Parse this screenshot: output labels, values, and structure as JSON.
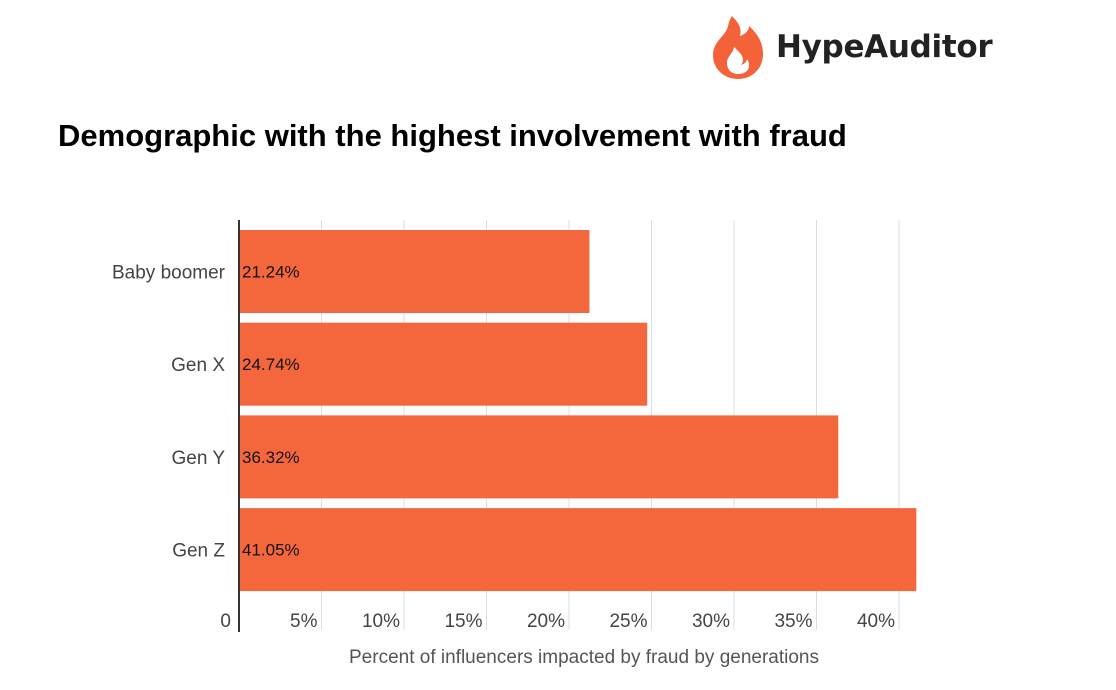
{
  "brand": {
    "name": "HypeAuditor",
    "icon": "flame-icon",
    "icon_color": "#F4623A"
  },
  "chart_data": {
    "type": "bar",
    "orientation": "horizontal",
    "title": "Demographic with the highest involvement with fraud",
    "categories": [
      "Baby boomer",
      "Gen X",
      "Gen Y",
      "Gen Z"
    ],
    "values": [
      21.24,
      24.74,
      36.32,
      41.05
    ],
    "data_labels": [
      "21.24%",
      "24.74%",
      "36.32%",
      "41.05%"
    ],
    "xlabel": "Percent of influencers impacted by fraud by generations",
    "ylabel": "",
    "xlim": [
      0,
      43
    ],
    "x_ticks": [
      0,
      5,
      10,
      15,
      20,
      25,
      30,
      35,
      40
    ],
    "x_tick_labels": [
      "0",
      "5%",
      "10%",
      "15%",
      "20%",
      "25%",
      "30%",
      "35%",
      "40%"
    ],
    "grid": true,
    "legend": "none",
    "bar_color": "#F4673D"
  }
}
